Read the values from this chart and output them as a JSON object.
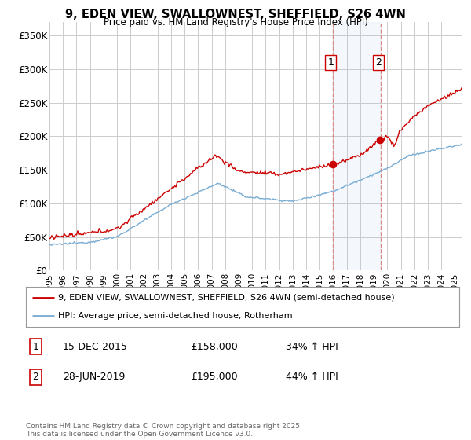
{
  "title_line1": "9, EDEN VIEW, SWALLOWNEST, SHEFFIELD, S26 4WN",
  "title_line2": "Price paid vs. HM Land Registry's House Price Index (HPI)",
  "xlim_start": 1995.0,
  "xlim_end": 2025.5,
  "ylim": [
    0,
    370000
  ],
  "yticks": [
    0,
    50000,
    100000,
    150000,
    200000,
    250000,
    300000,
    350000
  ],
  "ytick_labels": [
    "£0",
    "£50K",
    "£100K",
    "£150K",
    "£200K",
    "£250K",
    "£300K",
    "£350K"
  ],
  "red_line_label": "9, EDEN VIEW, SWALLOWNEST, SHEFFIELD, S26 4WN (semi-detached house)",
  "blue_line_label": "HPI: Average price, semi-detached house, Rotherham",
  "sale1_date": 2015.958,
  "sale1_price": 158000,
  "sale1_label": "1",
  "sale1_text": "15-DEC-2015",
  "sale1_price_text": "£158,000",
  "sale1_hpi_text": "34% ↑ HPI",
  "sale2_date": 2019.49,
  "sale2_price": 195000,
  "sale2_label": "2",
  "sale2_text": "28-JUN-2019",
  "sale2_price_text": "£195,000",
  "sale2_hpi_text": "44% ↑ HPI",
  "red_color": "#cc0000",
  "blue_color": "#7aadd4",
  "vline_color": "#dd8888",
  "grid_color": "#cccccc",
  "background_color": "#ffffff",
  "footnote": "Contains HM Land Registry data © Crown copyright and database right 2025.\nThis data is licensed under the Open Government Licence v3.0."
}
